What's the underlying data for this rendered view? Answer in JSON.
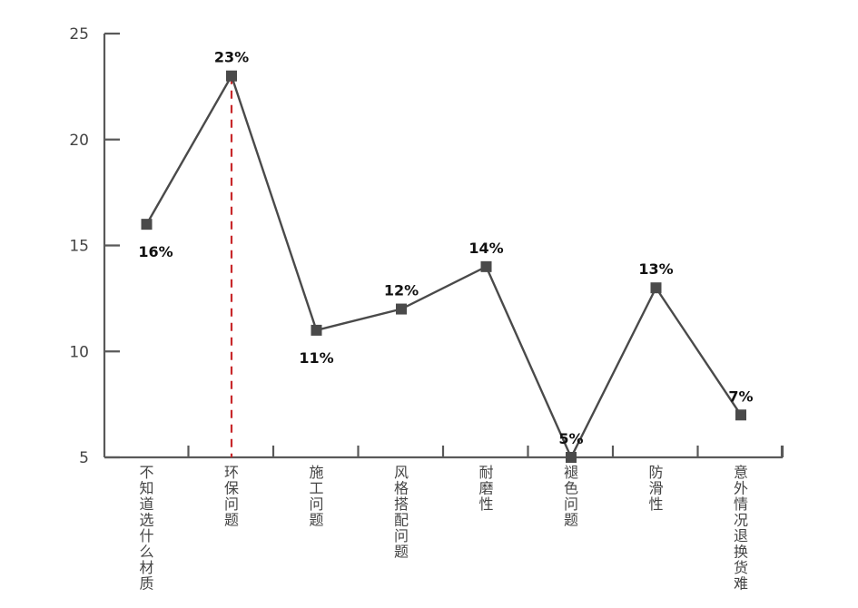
{
  "chart_data": {
    "type": "line",
    "categories": [
      "不知道选什么材质",
      "环保问题",
      "施工问题",
      "风格搭配问题",
      "耐磨性",
      "褪色问题",
      "防滑性",
      "意外情况退换货难"
    ],
    "values": [
      16,
      23,
      11,
      12,
      14,
      5,
      13,
      7
    ],
    "data_labels": [
      "16%",
      "23%",
      "11%",
      "12%",
      "14%",
      "5%",
      "13%",
      "7%"
    ],
    "yticks": [
      5,
      10,
      15,
      20,
      25
    ],
    "ylim": [
      5,
      25
    ],
    "title": "",
    "xlabel": "",
    "ylabel": "",
    "highlight_category": "环保问题",
    "colors": {
      "line": "#4a4a4a",
      "marker": "#4a4a4a",
      "axis": "#595959",
      "highlight": "#c8282b"
    }
  }
}
